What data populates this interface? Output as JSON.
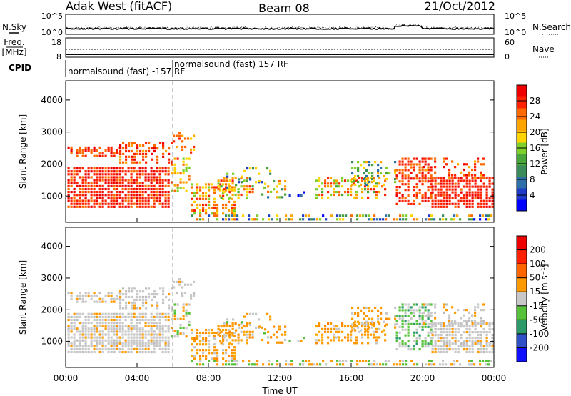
{
  "header": {
    "station": "Adak West (fitACF)",
    "beam": "Beam 08",
    "date": "21/Oct/2012"
  },
  "strip_panels": {
    "nsky_label": "N.Sky",
    "nsearch_label": "N.Search",
    "freq_label_1": "Freq.",
    "freq_label_2": "[MHz]",
    "nave_label": "Nave",
    "cpid_label": "CPID",
    "cpid_entries": [
      "normalsound (fast) -157 RF",
      "normalsound (fast) 157 RF"
    ]
  },
  "chart_data": [
    {
      "type": "line",
      "name": "noise-strip",
      "left_axis": {
        "label": "N.Sky",
        "ticks": [
          "10^5",
          "10^0"
        ]
      },
      "right_axis": {
        "label": "N.Search",
        "ticks": [
          "10^5",
          "10^0"
        ]
      },
      "xlim": [
        0,
        24
      ]
    },
    {
      "type": "line",
      "name": "freq-nave-strip",
      "left_axis": {
        "label": "Freq. [MHz]",
        "ticks": [
          18,
          8
        ],
        "ylim": [
          8,
          18
        ]
      },
      "right_axis": {
        "label": "Nave",
        "ticks": [
          60,
          0
        ],
        "ylim": [
          0,
          60
        ]
      },
      "xlim": [
        0,
        24
      ]
    },
    {
      "type": "heatmap",
      "name": "power-panel",
      "ylabel": "Slant Range [km]",
      "yticks": [
        1000,
        2000,
        3000,
        4000
      ],
      "ylim": [
        180,
        4600
      ],
      "xlim": [
        0,
        24
      ],
      "colorbar": {
        "label": "Power [dB]",
        "ticks": [
          4,
          8,
          12,
          16,
          20,
          24,
          28
        ],
        "range": [
          0,
          32
        ],
        "colors": [
          "#0000ff",
          "#1e3cc8",
          "#2e6fa8",
          "#3b8c5a",
          "#4aa63a",
          "#7fd02a",
          "#ffd400",
          "#ffa500",
          "#ff6a00",
          "#ff2200",
          "#ee0000"
        ]
      }
    },
    {
      "type": "heatmap",
      "name": "velocity-panel",
      "ylabel": "Slant Range [km]",
      "yticks": [
        1000,
        2000,
        3000,
        4000
      ],
      "ylim": [
        180,
        4600
      ],
      "xlim": [
        0,
        24
      ],
      "xlabel": "Time UT",
      "xtick_labels": [
        "00:00",
        "04:00",
        "08:00",
        "12:00",
        "16:00",
        "20:00",
        "00:00"
      ],
      "xticks": [
        0,
        4,
        8,
        12,
        16,
        20,
        24
      ],
      "colorbar": {
        "label": "Velocity [m s⁻¹]",
        "tick_labels": [
          "200",
          "100",
          "50",
          "15",
          "-15",
          "-50",
          "-100",
          "-200"
        ],
        "colors": [
          "#1010ff",
          "#3050c8",
          "#2e9a6a",
          "#55c23a",
          "#c8c8c8",
          "#ff9900",
          "#ff6600",
          "#ff2200",
          "#ee0000"
        ]
      }
    }
  ],
  "cpid_change_time": 6.0
}
